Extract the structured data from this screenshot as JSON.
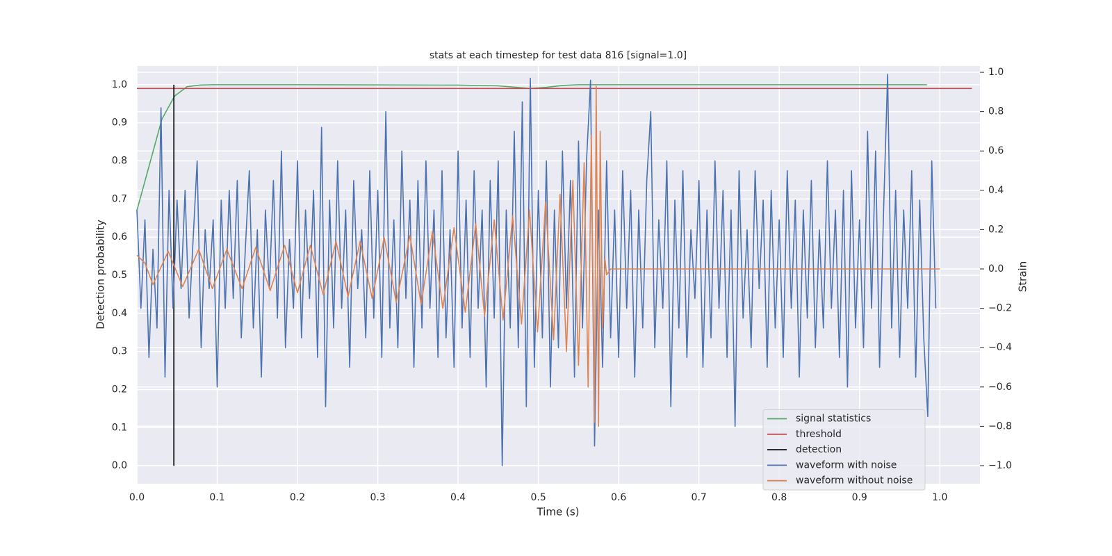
{
  "chart_data": {
    "type": "line",
    "title": "stats at each timestep for test data 816 [signal=1.0]",
    "xlabel": "Time (s)",
    "ylabel": "Detection probability",
    "y2label": "Strain",
    "xlim": [
      0,
      1.05
    ],
    "ylim": [
      -0.047,
      1.049
    ],
    "y2lim": [
      -1.092,
      1.032
    ],
    "xticks": [
      {
        "value": 0,
        "label": "0.0"
      },
      {
        "value": 0.1,
        "label": "0.1"
      },
      {
        "value": 0.2,
        "label": "0.2"
      },
      {
        "value": 0.3,
        "label": "0.3"
      },
      {
        "value": 0.4,
        "label": "0.4"
      },
      {
        "value": 0.5,
        "label": "0.5"
      },
      {
        "value": 0.6,
        "label": "0.6"
      },
      {
        "value": 0.7,
        "label": "0.7"
      },
      {
        "value": 0.8,
        "label": "0.8"
      },
      {
        "value": 0.9,
        "label": "0.9"
      },
      {
        "value": 1,
        "label": "1.0"
      }
    ],
    "yticks": [
      {
        "value": 0,
        "label": "0.0"
      },
      {
        "value": 0.1,
        "label": "0.1"
      },
      {
        "value": 0.2,
        "label": "0.2"
      },
      {
        "value": 0.3,
        "label": "0.3"
      },
      {
        "value": 0.4,
        "label": "0.4"
      },
      {
        "value": 0.5,
        "label": "0.5"
      },
      {
        "value": 0.6,
        "label": "0.6"
      },
      {
        "value": 0.7,
        "label": "0.7"
      },
      {
        "value": 0.8,
        "label": "0.8"
      },
      {
        "value": 0.9,
        "label": "0.9"
      },
      {
        "value": 1,
        "label": "1.0"
      }
    ],
    "y2ticks": [
      {
        "value": -1,
        "label": "−1.0"
      },
      {
        "value": -0.8,
        "label": "−0.8"
      },
      {
        "value": -0.6,
        "label": "−0.6"
      },
      {
        "value": -0.4,
        "label": "−0.4"
      },
      {
        "value": -0.2,
        "label": "−0.2"
      },
      {
        "value": 0,
        "label": "0.0"
      },
      {
        "value": 0.2,
        "label": "0.2"
      },
      {
        "value": 0.4,
        "label": "0.4"
      },
      {
        "value": 0.6,
        "label": "0.6"
      },
      {
        "value": 0.8,
        "label": "0.8"
      },
      {
        "value": 1,
        "label": "1.0"
      }
    ],
    "grid": true,
    "legend": "lower right",
    "series": [
      {
        "name": "signal statistics",
        "color": "#55a868",
        "x": [
          0,
          0.0156,
          0.0312,
          0.0469,
          0.0625,
          0.0781,
          0.0938,
          0.2,
          0.4,
          0.45,
          0.49,
          0.51,
          0.53,
          0.55,
          0.7,
          0.984
        ],
        "values": [
          0.67,
          0.79,
          0.91,
          0.97,
          0.995,
          0.999,
          1.0,
          1.0,
          0.999,
          0.997,
          0.99,
          0.993,
          0.998,
          1.0,
          1.0,
          1.0
        ]
      },
      {
        "name": "threshold",
        "color": "#c44e52",
        "x": [
          0,
          1.04
        ],
        "values": [
          0.99,
          0.99
        ]
      },
      {
        "name": "detection",
        "color": "#000000",
        "x": [
          0.046,
          0.046
        ],
        "values": [
          0,
          1
        ]
      },
      {
        "name": "waveform with noise",
        "color": "#4c72b0",
        "axis": "y2",
        "x": [
          0,
          0.005,
          0.01,
          0.015,
          0.02,
          0.025,
          0.03,
          0.035,
          0.04,
          0.045,
          0.05,
          0.055,
          0.06,
          0.065,
          0.07,
          0.075,
          0.08,
          0.085,
          0.09,
          0.095,
          0.1,
          0.105,
          0.11,
          0.115,
          0.12,
          0.125,
          0.13,
          0.135,
          0.14,
          0.145,
          0.15,
          0.155,
          0.16,
          0.165,
          0.17,
          0.175,
          0.18,
          0.185,
          0.19,
          0.195,
          0.2,
          0.205,
          0.21,
          0.215,
          0.22,
          0.225,
          0.23,
          0.235,
          0.24,
          0.245,
          0.25,
          0.255,
          0.26,
          0.265,
          0.27,
          0.275,
          0.28,
          0.285,
          0.29,
          0.295,
          0.3,
          0.305,
          0.31,
          0.315,
          0.32,
          0.325,
          0.33,
          0.335,
          0.34,
          0.345,
          0.35,
          0.355,
          0.36,
          0.365,
          0.37,
          0.375,
          0.38,
          0.385,
          0.39,
          0.395,
          0.4,
          0.405,
          0.41,
          0.415,
          0.42,
          0.425,
          0.43,
          0.435,
          0.44,
          0.445,
          0.45,
          0.455,
          0.46,
          0.465,
          0.47,
          0.475,
          0.48,
          0.485,
          0.49,
          0.495,
          0.5,
          0.505,
          0.51,
          0.515,
          0.52,
          0.525,
          0.53,
          0.535,
          0.54,
          0.545,
          0.55,
          0.555,
          0.56,
          0.565,
          0.57,
          0.575,
          0.58,
          0.585,
          0.59,
          0.595,
          0.6,
          0.605,
          0.61,
          0.615,
          0.62,
          0.625,
          0.63,
          0.635,
          0.64,
          0.645,
          0.65,
          0.655,
          0.66,
          0.665,
          0.67,
          0.675,
          0.68,
          0.685,
          0.69,
          0.695,
          0.7,
          0.705,
          0.71,
          0.715,
          0.72,
          0.725,
          0.73,
          0.735,
          0.74,
          0.745,
          0.75,
          0.755,
          0.76,
          0.765,
          0.77,
          0.775,
          0.78,
          0.785,
          0.79,
          0.795,
          0.8,
          0.805,
          0.81,
          0.815,
          0.82,
          0.825,
          0.83,
          0.835,
          0.84,
          0.845,
          0.85,
          0.855,
          0.86,
          0.865,
          0.87,
          0.875,
          0.88,
          0.885,
          0.89,
          0.895,
          0.9,
          0.905,
          0.91,
          0.915,
          0.92,
          0.925,
          0.93,
          0.935,
          0.94,
          0.945,
          0.95,
          0.955,
          0.96,
          0.965,
          0.97,
          0.975,
          0.98,
          0.985,
          0.99,
          0.995
        ],
        "values": [
          0.3,
          -0.2,
          0.25,
          -0.45,
          0.1,
          -0.3,
          0.82,
          -0.55,
          0.4,
          -0.2,
          0.35,
          -0.1,
          0.4,
          -0.25,
          0.15,
          0.55,
          -0.4,
          0.2,
          -0.1,
          0.25,
          -0.6,
          0.35,
          -0.2,
          0.4,
          -0.15,
          0.45,
          -0.35,
          0.1,
          0.5,
          -0.3,
          0.2,
          -0.55,
          0.3,
          -0.1,
          0.45,
          -0.25,
          0.6,
          -0.4,
          0.15,
          -0.2,
          0.55,
          -0.35,
          0.3,
          -0.15,
          0.4,
          -0.45,
          0.72,
          -0.7,
          0.35,
          -0.3,
          0.55,
          -0.2,
          0.3,
          -0.5,
          0.45,
          -0.1,
          0.2,
          -0.35,
          0.5,
          -0.25,
          0.4,
          -0.45,
          0.8,
          -0.3,
          0.25,
          -0.4,
          0.6,
          -0.15,
          0.35,
          -0.5,
          0.45,
          -0.3,
          0.55,
          -0.2,
          0.3,
          -0.45,
          0.5,
          -0.35,
          0.2,
          -0.5,
          0.6,
          -0.3,
          0.35,
          -0.45,
          0.5,
          -0.2,
          0.3,
          -0.6,
          0.45,
          -0.25,
          0.55,
          -1.0,
          0.3,
          -0.3,
          0.7,
          -0.4,
          0.85,
          -0.7,
          0.97,
          -0.5,
          0.4,
          -0.35,
          0.55,
          -0.6,
          0.3,
          -0.4,
          0.6,
          -0.2,
          0.45,
          -0.55,
          0.65,
          -0.3,
          0.55,
          0.96,
          -0.9,
          0.3,
          -0.5,
          0.55,
          -0.35,
          0.3,
          -0.45,
          0.5,
          -0.2,
          0.4,
          -0.55,
          0.3,
          -0.3,
          0.45,
          0.8,
          -0.4,
          0.25,
          -0.2,
          0.55,
          -0.7,
          0.35,
          -0.3,
          0.5,
          -0.45,
          0.2,
          -0.15,
          0.45,
          -0.5,
          0.3,
          -0.35,
          0.55,
          -0.2,
          0.4,
          -0.45,
          0.3,
          -0.8,
          0.5,
          -0.25,
          0.2,
          -0.4,
          0.5,
          -0.1,
          0.35,
          -0.5,
          0.4,
          -0.3,
          0.25,
          -0.45,
          0.5,
          -0.2,
          0.35,
          -0.55,
          0.3,
          -0.25,
          0.45,
          -0.4,
          0.2,
          -0.3,
          0.55,
          -0.2,
          0.3,
          -0.45,
          0.4,
          -0.6,
          0.5,
          -0.3,
          0.25,
          -0.4,
          0.7,
          -0.2,
          0.6,
          -0.5,
          0.3,
          0.99,
          -0.3,
          0.4,
          -0.45,
          0.3,
          -0.2,
          0.5,
          -0.55,
          0.35,
          -0.35,
          -0.75,
          0.55,
          -0.2
        ]
      },
      {
        "name": "waveform without noise",
        "color": "#dd8452",
        "axis": "y2",
        "x": [
          0,
          0.01,
          0.02,
          0.039,
          0.057,
          0.077,
          0.094,
          0.112,
          0.131,
          0.148,
          0.166,
          0.184,
          0.2,
          0.216,
          0.232,
          0.248,
          0.263,
          0.278,
          0.293,
          0.308,
          0.323,
          0.34,
          0.354,
          0.368,
          0.381,
          0.395,
          0.409,
          0.422,
          0.433,
          0.445,
          0.456,
          0.468,
          0.479,
          0.489,
          0.499,
          0.509,
          0.519,
          0.527,
          0.535,
          0.543,
          0.55,
          0.557,
          0.562,
          0.566,
          0.57,
          0.572,
          0.575,
          0.577,
          0.58,
          0.583,
          0.585,
          0.59,
          1.0
        ],
        "values": [
          0.07,
          0.03,
          -0.08,
          0.09,
          -0.09,
          0.1,
          -0.1,
          0.1,
          -0.1,
          0.11,
          -0.11,
          0.12,
          -0.12,
          0.12,
          -0.13,
          0.14,
          -0.14,
          0.14,
          -0.15,
          0.16,
          -0.17,
          0.17,
          -0.18,
          0.19,
          -0.2,
          0.21,
          -0.22,
          0.23,
          -0.24,
          0.25,
          -0.26,
          0.27,
          -0.28,
          0.3,
          -0.32,
          0.34,
          -0.36,
          0.38,
          -0.42,
          0.45,
          -0.49,
          0.54,
          -0.6,
          0.68,
          -0.78,
          0.93,
          -0.8,
          0.7,
          -0.3,
          0.05,
          -0.03,
          0,
          0
        ]
      }
    ]
  }
}
